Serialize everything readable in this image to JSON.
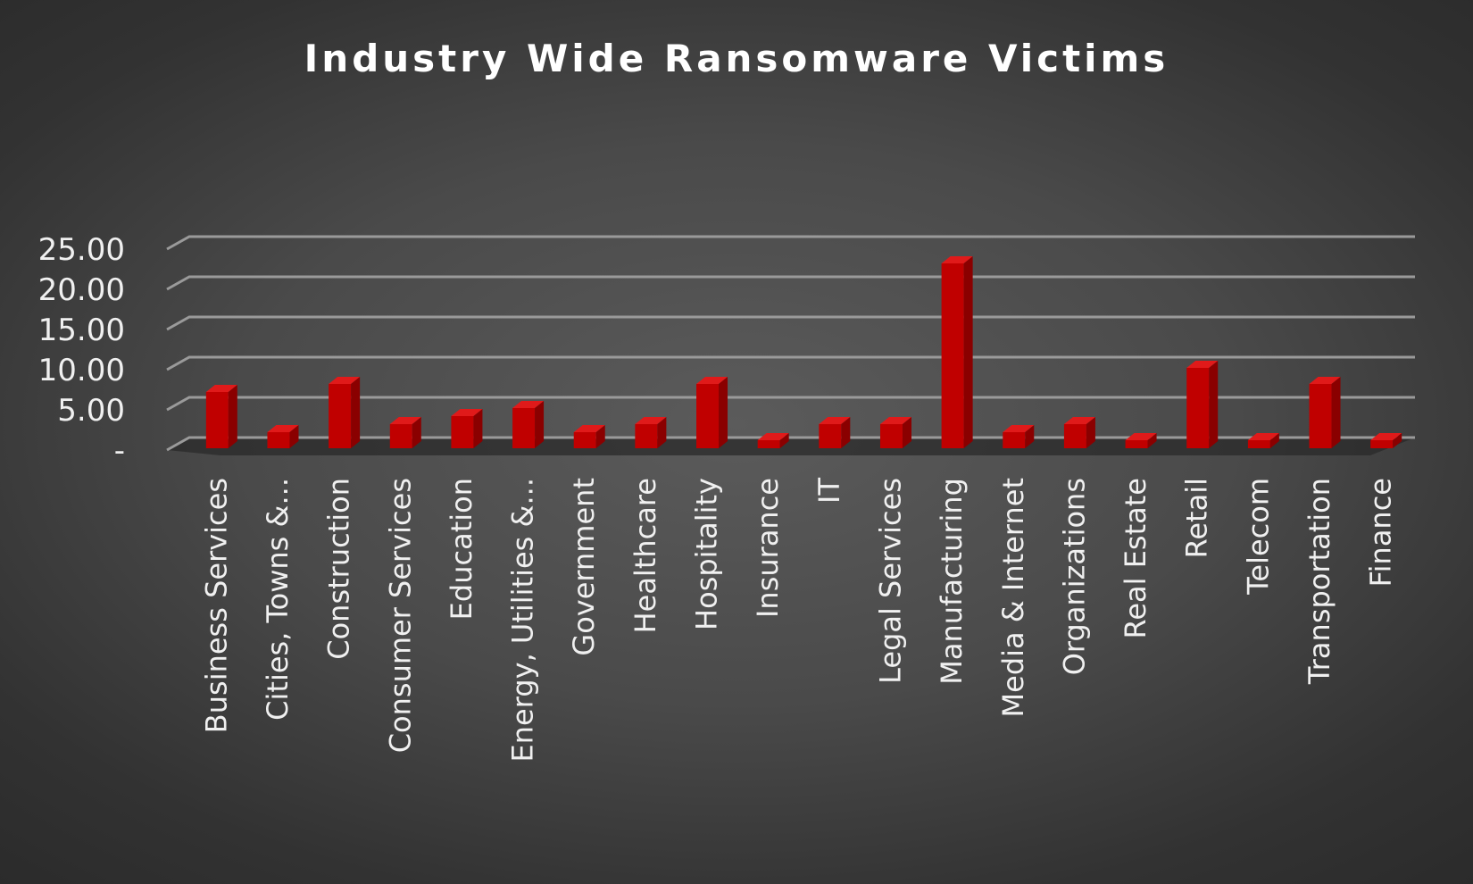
{
  "chart_data": {
    "type": "bar",
    "title": "Industry Wide Ransomware Victims",
    "xlabel": "",
    "ylabel": "",
    "ylim": [
      0,
      25
    ],
    "yticks": [
      0,
      5,
      10,
      15,
      20,
      25
    ],
    "ytick_labels": [
      "-",
      "5.00",
      "10.00",
      "15.00",
      "20.00",
      "25.00"
    ],
    "grid": true,
    "legend": "none",
    "style": "3d-column",
    "bar_color": "#c00000",
    "categories": [
      "Business Services",
      "Cities, Towns &...",
      "Construction",
      "Consumer Services",
      "Education",
      "Energy, Utilities &...",
      "Government",
      "Healthcare",
      "Hospitality",
      "Insurance",
      "IT",
      "Legal Services",
      "Manufacturing",
      "Media & Internet",
      "Organizations",
      "Real Estate",
      "Retail",
      "Telecom",
      "Transportation",
      "Finance"
    ],
    "values": [
      7,
      2,
      8,
      3,
      4,
      5,
      2,
      3,
      8,
      1,
      3,
      3,
      23,
      2,
      3,
      1,
      10,
      1,
      8,
      1
    ]
  }
}
